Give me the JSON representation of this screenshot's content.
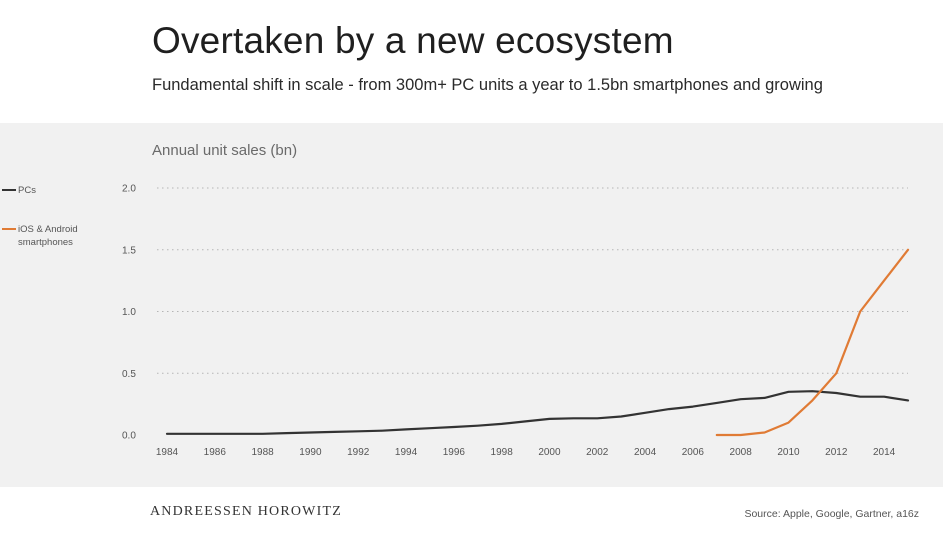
{
  "title": "Overtaken by a new ecosystem",
  "subtitle": "Fundamental shift in scale - from 300m+ PC units a year to 1.5bn smartphones and growing",
  "footer": {
    "brand": "ANDREESSEN HOROWITZ",
    "source": "Source: Apple, Google, Gartner, a16z"
  },
  "colors": {
    "pcs": "#333333",
    "smartphones": "#e07b35",
    "band": "#f1f1f1",
    "grid": "#b5b5b5"
  },
  "chart_data": {
    "type": "line",
    "title": "",
    "ylabel": "Annual unit sales (bn)",
    "xlabel": "",
    "xlim": [
      1984,
      2015
    ],
    "ylim": [
      0,
      2.0
    ],
    "yticks": [
      0.0,
      0.5,
      1.0,
      1.5,
      2.0
    ],
    "ytick_labels": [
      "0.0",
      "0.5",
      "1.0",
      "1.5",
      "2.0"
    ],
    "xticks": [
      1984,
      1986,
      1988,
      1990,
      1992,
      1994,
      1996,
      1998,
      2000,
      2002,
      2004,
      2006,
      2008,
      2010,
      2012,
      2014
    ],
    "xtick_labels": [
      "1984",
      "1986",
      "1988",
      "1990",
      "1992",
      "1994",
      "1996",
      "1998",
      "2000",
      "2002",
      "2004",
      "2006",
      "2008",
      "2010",
      "2012",
      "2014"
    ],
    "grid": "horizontal dotted",
    "legend_position": "left",
    "series": [
      {
        "name": "PCs",
        "color": "#333333",
        "x": [
          1984,
          1985,
          1986,
          1987,
          1988,
          1989,
          1990,
          1991,
          1992,
          1993,
          1994,
          1995,
          1996,
          1997,
          1998,
          1999,
          2000,
          2001,
          2002,
          2003,
          2004,
          2005,
          2006,
          2007,
          2008,
          2009,
          2010,
          2011,
          2012,
          2013,
          2014,
          2015
        ],
        "y": [
          0.01,
          0.01,
          0.01,
          0.01,
          0.01,
          0.015,
          0.02,
          0.025,
          0.03,
          0.035,
          0.045,
          0.055,
          0.065,
          0.075,
          0.09,
          0.11,
          0.13,
          0.135,
          0.135,
          0.15,
          0.18,
          0.21,
          0.23,
          0.26,
          0.29,
          0.3,
          0.35,
          0.355,
          0.34,
          0.31,
          0.31,
          0.28
        ]
      },
      {
        "name": "iOS & Android smartphones",
        "color": "#e07b35",
        "x": [
          2007,
          2008,
          2009,
          2010,
          2011,
          2012,
          2013,
          2014,
          2015
        ],
        "y": [
          0.0,
          0.0,
          0.02,
          0.1,
          0.28,
          0.5,
          1.0,
          1.25,
          1.5
        ]
      }
    ]
  }
}
